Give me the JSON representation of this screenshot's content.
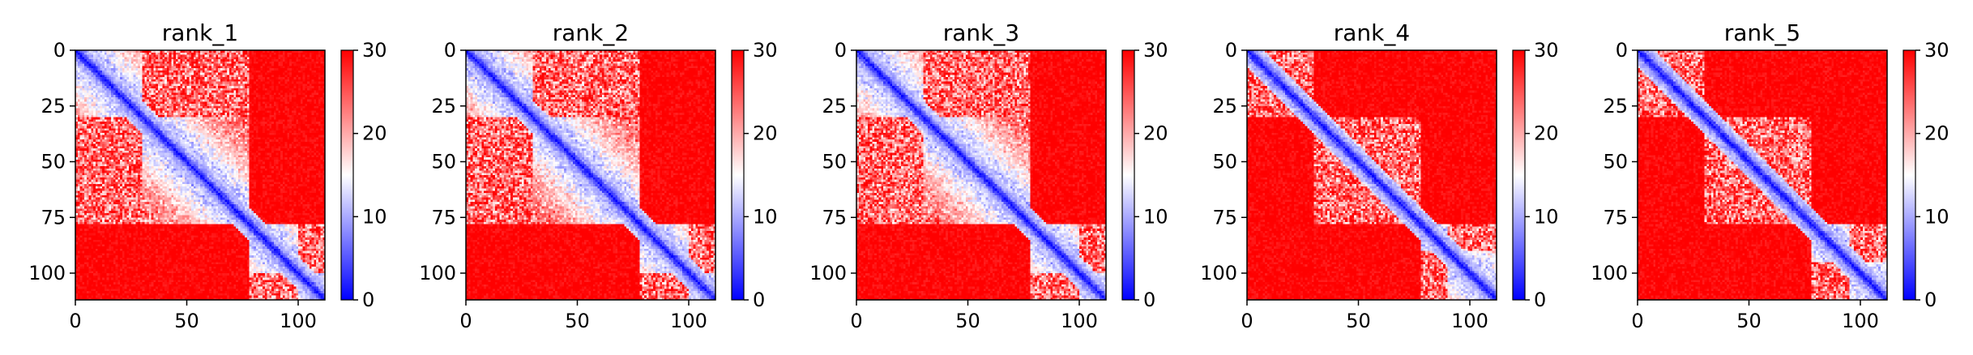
{
  "figure": {
    "background": "#ffffff"
  },
  "chart_data": [
    {
      "type": "heatmap",
      "title": "rank_1",
      "size": 112,
      "xlim": [
        0,
        112
      ],
      "ylim": [
        112,
        0
      ],
      "xticks": [
        0,
        50,
        100
      ],
      "yticks": [
        0,
        25,
        50,
        75,
        100
      ],
      "colorbar": {
        "min": 0,
        "max": 30,
        "ticks": [
          0,
          10,
          20,
          30
        ],
        "colormap": "bwr"
      },
      "domains": [
        [
          0,
          78
        ],
        [
          78,
          112
        ]
      ],
      "subdomains": [
        [
          0,
          30
        ],
        [
          30,
          78
        ],
        [
          62,
          78
        ],
        [
          78,
          100
        ],
        [
          100,
          112
        ]
      ],
      "diagonal_band": "low"
    },
    {
      "type": "heatmap",
      "title": "rank_2",
      "size": 112,
      "xlim": [
        0,
        112
      ],
      "ylim": [
        112,
        0
      ],
      "xticks": [
        0,
        50,
        100
      ],
      "yticks": [
        0,
        25,
        50,
        75,
        100
      ],
      "colorbar": {
        "min": 0,
        "max": 30,
        "ticks": [
          0,
          10,
          20,
          30
        ],
        "colormap": "bwr"
      },
      "domains": [
        [
          0,
          78
        ],
        [
          78,
          112
        ]
      ],
      "subdomains": [
        [
          0,
          30
        ],
        [
          30,
          78
        ],
        [
          78,
          100
        ],
        [
          100,
          112
        ]
      ],
      "diagonal_band": "low"
    },
    {
      "type": "heatmap",
      "title": "rank_3",
      "size": 112,
      "xlim": [
        0,
        112
      ],
      "ylim": [
        112,
        0
      ],
      "xticks": [
        0,
        50,
        100
      ],
      "yticks": [
        0,
        25,
        50,
        75,
        100
      ],
      "colorbar": {
        "min": 0,
        "max": 30,
        "ticks": [
          0,
          10,
          20,
          30
        ],
        "colormap": "bwr"
      },
      "domains": [
        [
          0,
          78
        ],
        [
          78,
          112
        ]
      ],
      "subdomains": [
        [
          0,
          30
        ],
        [
          30,
          78
        ],
        [
          78,
          100
        ],
        [
          100,
          112
        ]
      ],
      "diagonal_band": "low"
    },
    {
      "type": "heatmap",
      "title": "rank_4",
      "size": 112,
      "xlim": [
        0,
        112
      ],
      "ylim": [
        112,
        0
      ],
      "xticks": [
        0,
        50,
        100
      ],
      "yticks": [
        0,
        25,
        50,
        75,
        100
      ],
      "colorbar": {
        "min": 0,
        "max": 30,
        "ticks": [
          0,
          10,
          20,
          30
        ],
        "colormap": "bwr"
      },
      "domains": [
        [
          0,
          30
        ],
        [
          30,
          78
        ],
        [
          78,
          112
        ]
      ],
      "subdomains": [
        [
          78,
          90
        ],
        [
          90,
          112
        ]
      ],
      "diagonal_band": "low"
    },
    {
      "type": "heatmap",
      "title": "rank_5",
      "size": 112,
      "xlim": [
        0,
        112
      ],
      "ylim": [
        112,
        0
      ],
      "xticks": [
        0,
        50,
        100
      ],
      "yticks": [
        0,
        25,
        50,
        75,
        100
      ],
      "colorbar": {
        "min": 0,
        "max": 30,
        "ticks": [
          0,
          10,
          20,
          30
        ],
        "colormap": "bwr"
      },
      "domains": [
        [
          0,
          30
        ],
        [
          30,
          78
        ],
        [
          78,
          112
        ]
      ],
      "subdomains": [
        [
          78,
          95
        ],
        [
          95,
          112
        ]
      ],
      "diagonal_band": "low"
    }
  ]
}
